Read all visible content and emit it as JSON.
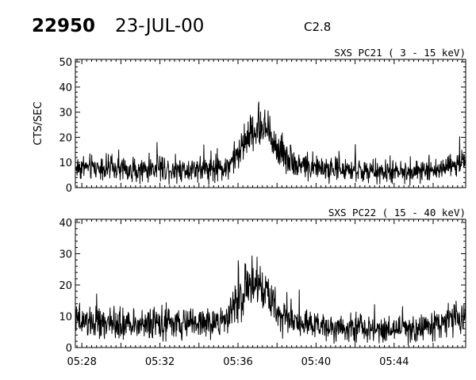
{
  "header": {
    "event_id": "22950",
    "date": "23-JUL-00",
    "flare_class": "C2.8"
  },
  "chart_data": [
    {
      "type": "line",
      "title": "SXS PC21  (  3 - 15 keV)",
      "ylabel": "CTS/SEC",
      "xlabel": "",
      "ylim": [
        0,
        51
      ],
      "yticks": [
        0,
        10,
        20,
        30,
        40,
        50
      ],
      "xlim": [
        "05:27:40",
        "05:47:40"
      ],
      "xticks": [],
      "grid": false,
      "series": [
        {
          "x": [
            "05:28",
            "05:29",
            "05:30",
            "05:31",
            "05:32",
            "05:33",
            "05:34",
            "05:35",
            "05:35:30",
            "05:36",
            "05:36:30",
            "05:37",
            "05:37:30",
            "05:38",
            "05:39",
            "05:40",
            "05:41",
            "05:42",
            "05:43",
            "05:44",
            "05:45",
            "05:46",
            "05:47",
            "05:47:40"
          ],
          "values": [
            8,
            8,
            7,
            7,
            8,
            7,
            8,
            7,
            9,
            13,
            20,
            24,
            22,
            16,
            9,
            8,
            7,
            7,
            6,
            6,
            6,
            7,
            9,
            10
          ]
        }
      ]
    },
    {
      "type": "line",
      "title": "SXS PC22  ( 15 - 40 keV)",
      "ylabel": "",
      "xlabel": "",
      "ylim": [
        0,
        41
      ],
      "yticks": [
        0,
        10,
        20,
        30,
        40
      ],
      "xlim": [
        "05:27:40",
        "05:47:40"
      ],
      "xticks": [
        "05:28",
        "05:32",
        "05:36",
        "05:40",
        "05:44"
      ],
      "grid": false,
      "series": [
        {
          "x": [
            "05:28",
            "05:29",
            "05:30",
            "05:31",
            "05:32",
            "05:33",
            "05:34",
            "05:35",
            "05:35:30",
            "05:36",
            "05:36:30",
            "05:37",
            "05:37:30",
            "05:38",
            "05:39",
            "05:40",
            "05:41",
            "05:42",
            "05:43",
            "05:44",
            "05:45",
            "05:46",
            "05:47",
            "05:47:40"
          ],
          "values": [
            8,
            8,
            7,
            7,
            8,
            7,
            8,
            8,
            10,
            15,
            19,
            20,
            17,
            12,
            8,
            7,
            7,
            6,
            6,
            6,
            6,
            7,
            9,
            11
          ]
        }
      ]
    }
  ]
}
